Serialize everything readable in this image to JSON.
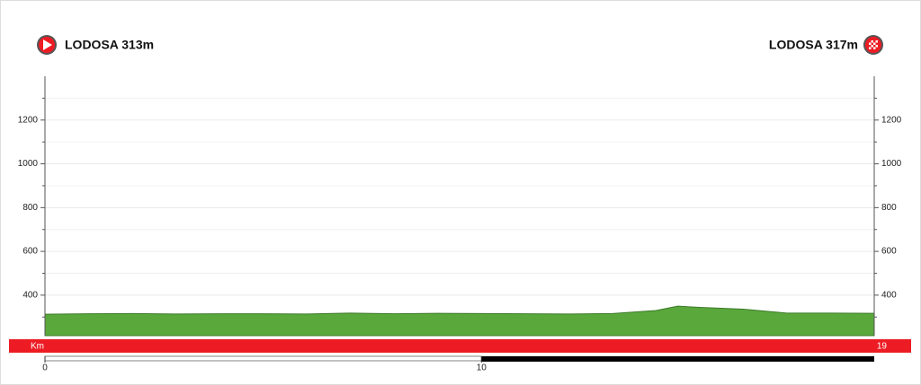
{
  "chart_data": {
    "type": "area",
    "start_label": "LODOSA 313m",
    "finish_label": "LODOSA 317m",
    "x_label": "Km",
    "x": [
      0,
      1,
      2,
      3,
      4,
      5,
      6,
      7,
      8,
      9,
      10,
      11,
      12,
      13,
      14,
      14.5,
      15,
      16,
      17,
      18,
      19
    ],
    "series": [
      {
        "color": "#5aa83c",
        "values": [
          313,
          315,
          316,
          314,
          315,
          315,
          314,
          318,
          315,
          317,
          316,
          315,
          314,
          316,
          330,
          350,
          344,
          336,
          318,
          318,
          317
        ]
      }
    ],
    "xlim": [
      0,
      19
    ],
    "xticks": [
      0,
      10
    ],
    "ylim": [
      215,
      1400
    ],
    "yticks": [
      400,
      600,
      800,
      1000,
      1200
    ],
    "minor_yticks": [
      300,
      500,
      700,
      900,
      1100,
      1300
    ],
    "grid": true,
    "bar_color": "#ed1c24"
  }
}
